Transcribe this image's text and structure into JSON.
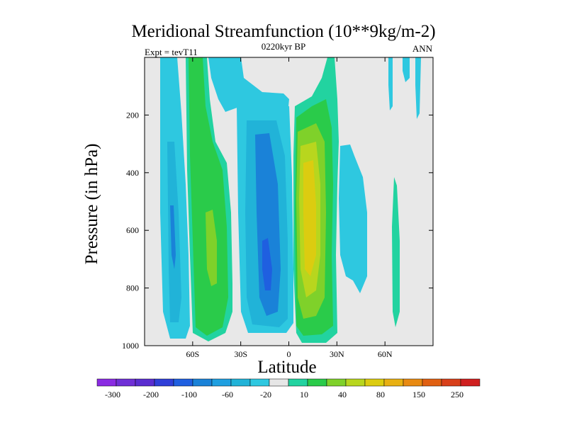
{
  "chart_data": {
    "type": "heatmap",
    "title": "Meridional Streamfunction (10**9kg/m-2)",
    "subtitle_left": "Expt = tevT11",
    "subtitle_center": "0220kyr BP",
    "subtitle_right": "ANN",
    "xlabel": "Latitude",
    "ylabel": "Pressure (in hPa)",
    "xlim": [
      -90,
      90
    ],
    "ylim": [
      0,
      1000
    ],
    "y_inverted": true,
    "x_ticks": [
      {
        "value": -60,
        "label": "60S"
      },
      {
        "value": -30,
        "label": "30S"
      },
      {
        "value": 0,
        "label": "0"
      },
      {
        "value": 30,
        "label": "30N"
      },
      {
        "value": 60,
        "label": "60N"
      }
    ],
    "y_ticks": [
      {
        "value": 200,
        "label": "200"
      },
      {
        "value": 400,
        "label": "400"
      },
      {
        "value": 600,
        "label": "600"
      },
      {
        "value": 800,
        "label": "800"
      },
      {
        "value": 1000,
        "label": "1000"
      }
    ],
    "colorbar": {
      "labels": [
        "-300",
        "-200",
        "-100",
        "-60",
        "-20",
        "10",
        "40",
        "80",
        "150",
        "250"
      ],
      "colors": [
        "#8a2be2",
        "#6f2fd6",
        "#5a2dd0",
        "#2f3fd8",
        "#1f5fe0",
        "#1a82d8",
        "#1f9fe0",
        "#21b3d8",
        "#2ec8e0",
        "#e6e6e6",
        "#22d3a0",
        "#2acb4a",
        "#7fd12a",
        "#b8d61e",
        "#dccc10",
        "#e8b012",
        "#e88a12",
        "#e06012",
        "#d8401a",
        "#d02020"
      ]
    },
    "contours": [
      {
        "name": "weak-negative-fill",
        "level": "-20",
        "color": "#2ec8e0"
      },
      {
        "name": "moderate-negative",
        "level": "-60",
        "color": "#21b3d8"
      },
      {
        "name": "strong-negative",
        "level": "-100",
        "color": "#1a82d8"
      },
      {
        "name": "weak-positive",
        "level": "10",
        "color": "#22d3a0"
      },
      {
        "name": "moderate-positive",
        "level": "40",
        "color": "#2acb4a"
      },
      {
        "name": "strong-positive",
        "level": "80",
        "color": "#7fd12a"
      },
      {
        "name": "stronger-positive",
        "level": "150",
        "color": "#dccc10"
      }
    ]
  }
}
